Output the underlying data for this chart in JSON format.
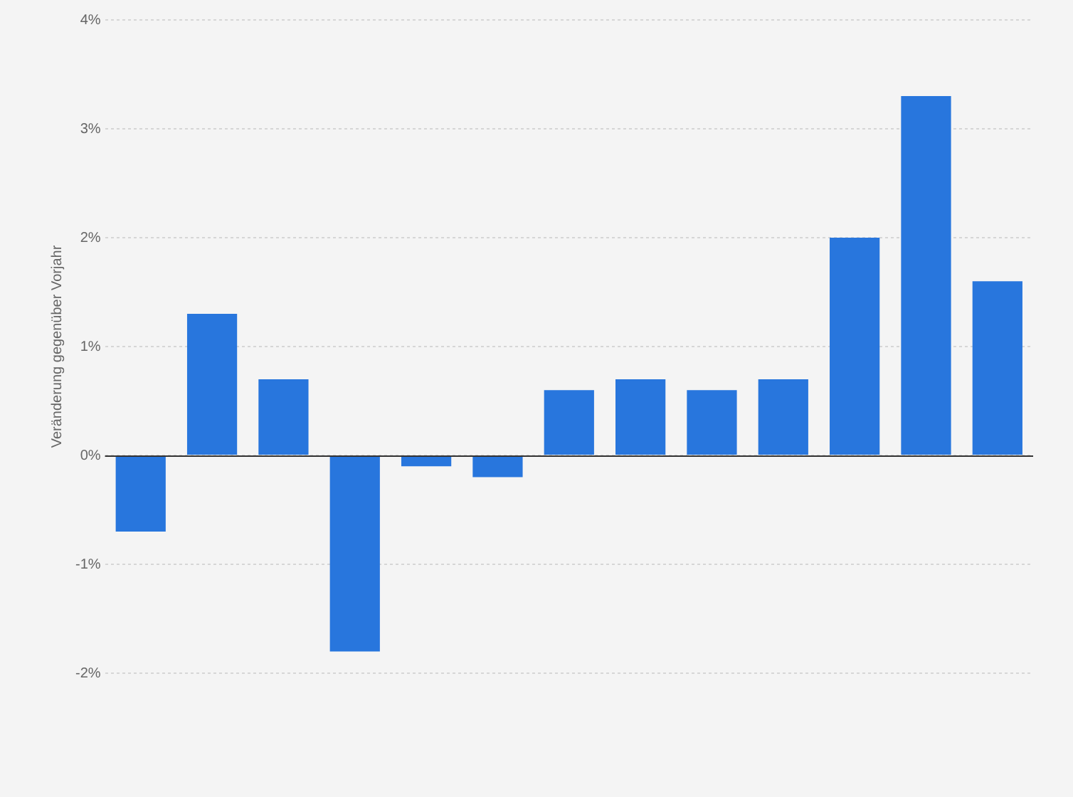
{
  "chart_data": {
    "type": "bar",
    "ylabel": "Veränderung gegenüber Vorjahr",
    "categories": [
      null,
      null,
      null,
      null,
      null,
      null,
      null,
      null,
      null,
      null,
      null,
      null,
      null
    ],
    "values": [
      -0.7,
      1.3,
      0.7,
      -1.8,
      -0.1,
      -0.2,
      0.6,
      0.7,
      0.6,
      0.7,
      2.0,
      3.3,
      1.6
    ],
    "color": "#2876dd",
    "ylim": [
      -2,
      4
    ],
    "yticks": [
      {
        "value": -2,
        "label": "-2%"
      },
      {
        "value": -1,
        "label": "-1%"
      },
      {
        "value": 0,
        "label": "0%"
      },
      {
        "value": 1,
        "label": "1%"
      },
      {
        "value": 2,
        "label": "2%"
      },
      {
        "value": 3,
        "label": "3%"
      },
      {
        "value": 4,
        "label": "4%"
      }
    ],
    "grid": "y",
    "tick_labels": "y",
    "legend": false
  }
}
